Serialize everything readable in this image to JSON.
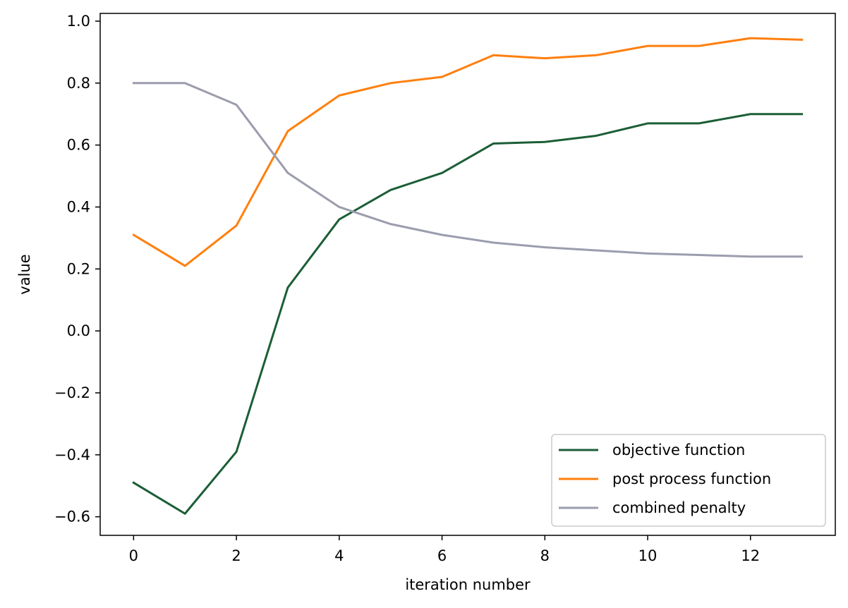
{
  "chart_data": {
    "type": "line",
    "title": "",
    "xlabel": "iteration number",
    "ylabel": "value",
    "xlim": [
      -0.65,
      13.65
    ],
    "ylim": [
      -0.66,
      1.025
    ],
    "xticks": [
      0,
      2,
      4,
      6,
      8,
      10,
      12
    ],
    "xtick_labels": [
      "0",
      "2",
      "4",
      "6",
      "8",
      "10",
      "12"
    ],
    "yticks": [
      -0.6,
      -0.4,
      -0.2,
      0.0,
      0.2,
      0.4,
      0.6,
      0.8,
      1.0
    ],
    "ytick_labels": [
      "−0.6",
      "−0.4",
      "−0.2",
      "0.0",
      "0.2",
      "0.4",
      "0.6",
      "0.8",
      "1.0"
    ],
    "grid": false,
    "legend_position": "lower-right",
    "x": [
      0,
      1,
      2,
      3,
      4,
      5,
      6,
      7,
      8,
      9,
      10,
      11,
      12,
      13
    ],
    "series": [
      {
        "name": "objective function",
        "color": "#1b5e36",
        "values": [
          -0.49,
          -0.59,
          -0.39,
          0.14,
          0.36,
          0.455,
          0.51,
          0.605,
          0.61,
          0.63,
          0.67,
          0.67,
          0.7,
          0.7
        ]
      },
      {
        "name": "post process function",
        "color": "#ff7f0e",
        "values": [
          0.31,
          0.21,
          0.34,
          0.645,
          0.76,
          0.8,
          0.82,
          0.89,
          0.88,
          0.89,
          0.92,
          0.92,
          0.945,
          0.94
        ]
      },
      {
        "name": "combined penalty",
        "color": "#9b9dae",
        "values": [
          0.8,
          0.8,
          0.73,
          0.51,
          0.4,
          0.345,
          0.31,
          0.285,
          0.27,
          0.26,
          0.25,
          0.245,
          0.24,
          0.24
        ]
      }
    ]
  }
}
